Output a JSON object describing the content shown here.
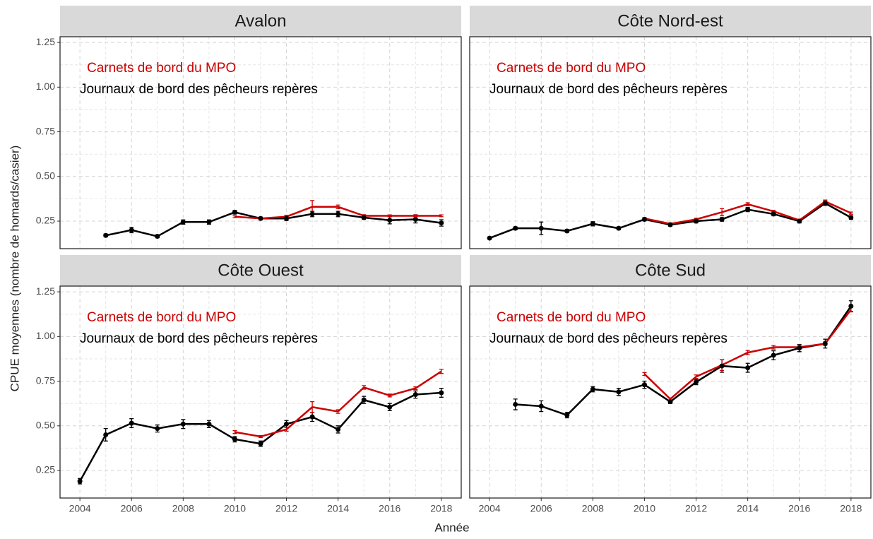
{
  "ylabel": "CPUE moyennes (nombre de homards/casier)",
  "xlabel": "Année",
  "chart_data": [
    {
      "type": "line",
      "title": "Avalon",
      "x": [
        2004,
        2005,
        2006,
        2007,
        2008,
        2009,
        2010,
        2011,
        2012,
        2013,
        2014,
        2015,
        2016,
        2017,
        2018
      ],
      "series": [
        {
          "name": "Journaux de bord des pêcheurs repères",
          "color": "#000000",
          "values": [
            null,
            0.17,
            0.2,
            0.165,
            0.245,
            0.245,
            0.3,
            0.265,
            0.265,
            0.29,
            0.29,
            0.27,
            0.255,
            0.26,
            0.24
          ],
          "errors": [
            null,
            0.008,
            0.015,
            0.008,
            0.012,
            0.012,
            0.01,
            0.008,
            0.012,
            0.015,
            0.015,
            0.01,
            0.02,
            0.02,
            0.018
          ]
        },
        {
          "name": "Carnets de bord du MPO",
          "color": "#cc0000",
          "values": [
            null,
            null,
            null,
            null,
            null,
            null,
            0.275,
            0.265,
            0.275,
            0.33,
            0.33,
            0.28,
            0.28,
            0.28,
            0.28
          ],
          "errors": [
            null,
            null,
            null,
            null,
            null,
            null,
            0.005,
            0.005,
            0.008,
            0.035,
            0.01,
            0.006,
            0.005,
            0.006,
            0.005
          ]
        }
      ],
      "xlim": [
        2003.23,
        2018.77
      ],
      "xticks": [
        2004,
        2006,
        2008,
        2010,
        2012,
        2014,
        2016,
        2018
      ],
      "ylim": [
        0.096,
        1.282
      ],
      "yticks": [
        0.25,
        {
          "value": 0.5,
          "label": "0.50"
        },
        0.75,
        {
          "value": 1,
          "label": "1.00"
        },
        1.25
      ],
      "grid": true
    },
    {
      "type": "line",
      "title": "Côte Nord-est",
      "x": [
        2004,
        2005,
        2006,
        2007,
        2008,
        2009,
        2010,
        2011,
        2012,
        2013,
        2014,
        2015,
        2016,
        2017,
        2018
      ],
      "series": [
        {
          "name": "Journaux de bord des pêcheurs repères",
          "color": "#000000",
          "values": [
            0.155,
            0.21,
            0.21,
            0.195,
            0.235,
            0.21,
            0.26,
            0.23,
            0.25,
            0.26,
            0.315,
            0.29,
            0.25,
            0.35,
            0.27
          ],
          "errors": [
            0.006,
            0.008,
            0.035,
            0.008,
            0.012,
            0.008,
            0.008,
            0.008,
            0.01,
            0.01,
            0.012,
            0.01,
            0.01,
            0.012,
            0.01
          ]
        },
        {
          "name": "Carnets de bord du MPO",
          "color": "#cc0000",
          "values": [
            null,
            null,
            null,
            null,
            null,
            null,
            0.265,
            0.235,
            0.26,
            0.3,
            0.345,
            0.305,
            0.255,
            0.36,
            0.295
          ],
          "errors": [
            null,
            null,
            null,
            null,
            null,
            null,
            0.005,
            0.005,
            0.006,
            0.02,
            0.008,
            0.006,
            0.006,
            0.008,
            0.006
          ]
        }
      ],
      "xlim": [
        2003.23,
        2018.77
      ],
      "xticks": [
        2004,
        2006,
        2008,
        2010,
        2012,
        2014,
        2016,
        2018
      ],
      "ylim": [
        0.096,
        1.282
      ],
      "yticks": [
        0.25,
        {
          "value": 0.5,
          "label": "0.50"
        },
        0.75,
        {
          "value": 1,
          "label": "1.00"
        },
        1.25
      ],
      "grid": true
    },
    {
      "type": "line",
      "title": "Côte Ouest",
      "x": [
        2004,
        2005,
        2006,
        2007,
        2008,
        2009,
        2010,
        2011,
        2012,
        2013,
        2014,
        2015,
        2016,
        2017,
        2018
      ],
      "series": [
        {
          "name": "Journaux de bord des pêcheurs repères",
          "color": "#000000",
          "values": [
            0.19,
            0.45,
            0.515,
            0.485,
            0.51,
            0.51,
            0.425,
            0.4,
            0.51,
            0.55,
            0.48,
            0.645,
            0.605,
            0.675,
            0.685
          ],
          "errors": [
            0.015,
            0.035,
            0.025,
            0.02,
            0.025,
            0.02,
            0.015,
            0.015,
            0.02,
            0.025,
            0.02,
            0.02,
            0.02,
            0.02,
            0.025
          ]
        },
        {
          "name": "Carnets de bord du MPO",
          "color": "#cc0000",
          "values": [
            null,
            null,
            null,
            null,
            null,
            null,
            0.465,
            0.44,
            0.48,
            0.605,
            0.58,
            0.715,
            0.67,
            0.71,
            0.805
          ],
          "errors": [
            null,
            null,
            null,
            null,
            null,
            null,
            0.008,
            0.006,
            0.01,
            0.03,
            0.01,
            0.01,
            0.008,
            0.008,
            0.012
          ]
        }
      ],
      "xlim": [
        2003.23,
        2018.77
      ],
      "xticks": [
        2004,
        2006,
        2008,
        2010,
        2012,
        2014,
        2016,
        2018
      ],
      "ylim": [
        0.096,
        1.282
      ],
      "yticks": [
        0.25,
        {
          "value": 0.5,
          "label": "0.50"
        },
        0.75,
        {
          "value": 1,
          "label": "1.00"
        },
        1.25
      ],
      "grid": true
    },
    {
      "type": "line",
      "title": "Côte Sud",
      "x": [
        2004,
        2005,
        2006,
        2007,
        2008,
        2009,
        2010,
        2011,
        2012,
        2013,
        2014,
        2015,
        2016,
        2017,
        2018
      ],
      "series": [
        {
          "name": "Journaux de bord des pêcheurs repères",
          "color": "#000000",
          "values": [
            null,
            0.62,
            0.61,
            0.56,
            0.705,
            0.69,
            0.73,
            0.635,
            0.745,
            0.835,
            0.825,
            0.895,
            0.935,
            0.96,
            1.17
          ],
          "errors": [
            null,
            0.03,
            0.03,
            0.015,
            0.015,
            0.02,
            0.02,
            0.01,
            0.015,
            0.035,
            0.025,
            0.025,
            0.02,
            0.025,
            0.03
          ]
        },
        {
          "name": "Carnets de bord du MPO",
          "color": "#cc0000",
          "values": [
            null,
            null,
            null,
            null,
            null,
            null,
            0.79,
            0.65,
            0.775,
            0.84,
            0.91,
            0.94,
            0.94,
            0.96,
            1.15
          ],
          "errors": [
            null,
            null,
            null,
            null,
            null,
            null,
            0.008,
            0.006,
            0.01,
            0.03,
            0.012,
            0.01,
            0.01,
            0.01,
            0.012
          ]
        }
      ],
      "xlim": [
        2003.23,
        2018.77
      ],
      "xticks": [
        2004,
        2006,
        2008,
        2010,
        2012,
        2014,
        2016,
        2018
      ],
      "ylim": [
        0.096,
        1.282
      ],
      "yticks": [
        0.25,
        {
          "value": 0.5,
          "label": "0.50"
        },
        0.75,
        {
          "value": 1,
          "label": "1.00"
        },
        1.25
      ],
      "grid": true
    }
  ]
}
